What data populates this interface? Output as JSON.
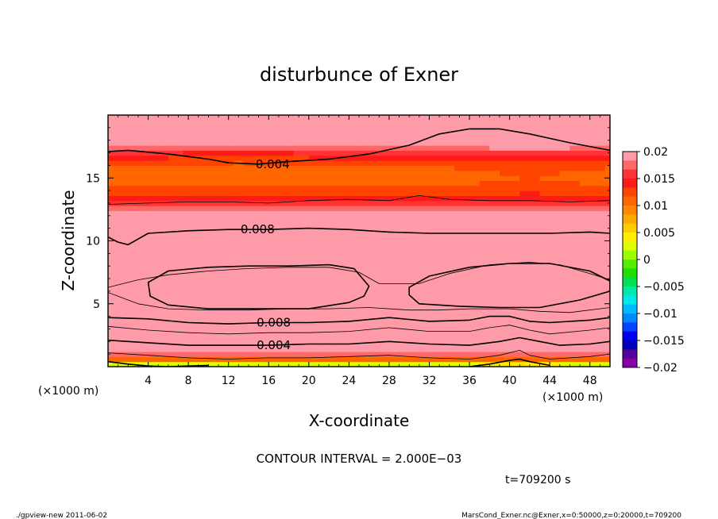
{
  "chart_data": {
    "type": "heatmap",
    "title": "disturbunce of Exner",
    "xlabel": "X-coordinate",
    "ylabel": "Z-coordinate",
    "x_unit": "(×1000 m)",
    "y_unit": "(×1000 m)",
    "xlim": [
      0,
      50
    ],
    "ylim": [
      0,
      20
    ],
    "x_ticks": [
      "4",
      "8",
      "12",
      "16",
      "20",
      "24",
      "28",
      "32",
      "36",
      "40",
      "44",
      "48"
    ],
    "x_tick_values": [
      4,
      8,
      12,
      16,
      20,
      24,
      28,
      32,
      36,
      40,
      44,
      48
    ],
    "y_ticks": [
      "5",
      "10",
      "15"
    ],
    "y_tick_values": [
      5,
      10,
      15
    ],
    "contour_interval_text": "CONTOUR INTERVAL = 2.000E−03",
    "time_text": "t=709200 s",
    "contour_labels": [
      {
        "text": "0.004",
        "x": 16.4,
        "z": 16.1
      },
      {
        "text": "0.008",
        "x": 14.9,
        "z": 10.9
      },
      {
        "text": "0.008",
        "x": 16.5,
        "z": 3.5
      },
      {
        "text": "0.004",
        "x": 16.5,
        "z": 1.7
      }
    ],
    "contours": [
      {
        "value": 0.004,
        "x": [
          0,
          2,
          6,
          10,
          12,
          15,
          18,
          22,
          26,
          30,
          33,
          36,
          39,
          42,
          46,
          50
        ],
        "z": [
          17.1,
          17.2,
          16.9,
          16.5,
          16.2,
          16.1,
          16.3,
          16.5,
          16.9,
          17.6,
          18.5,
          18.9,
          18.9,
          18.5,
          17.8,
          17.2
        ]
      },
      {
        "value": 0.006,
        "x": [
          0,
          4,
          8,
          12,
          16,
          20,
          24,
          28,
          31,
          34,
          38,
          42,
          46,
          50
        ],
        "z": [
          12.9,
          13,
          13.1,
          13.1,
          13,
          13.2,
          13.3,
          13.2,
          13.6,
          13.3,
          13.2,
          13.2,
          13.1,
          13.2
        ]
      },
      {
        "value": 0.008,
        "x": [
          0,
          1,
          2,
          4,
          8,
          12,
          16,
          20,
          24,
          28,
          32,
          36,
          40,
          44,
          48,
          50
        ],
        "z": [
          10.3,
          9.9,
          9.7,
          10.6,
          10.8,
          10.9,
          10.9,
          11,
          10.9,
          10.7,
          10.6,
          10.6,
          10.6,
          10.6,
          10.7,
          10.6
        ]
      },
      {
        "value": 0.01,
        "x": [
          0,
          3,
          6,
          10,
          14,
          18,
          22,
          25,
          27,
          29,
          31,
          34,
          38,
          42,
          45,
          48,
          50
        ],
        "z": [
          6.3,
          6.9,
          7.3,
          7.6,
          7.8,
          7.9,
          7.9,
          7.5,
          6.6,
          6.6,
          6.6,
          7.4,
          8.1,
          8.3,
          8.1,
          7.4,
          6.9
        ]
      },
      {
        "value": 0.012,
        "closed": true,
        "x": [
          4,
          6,
          10,
          14,
          18,
          22,
          24.5,
          26,
          25.5,
          24,
          20,
          15,
          10,
          6,
          4.2
        ],
        "z": [
          6.7,
          7.6,
          7.9,
          8,
          8,
          8.1,
          7.8,
          6.4,
          5.6,
          5.1,
          4.6,
          4.6,
          4.6,
          4.9,
          5.6
        ]
      },
      {
        "value": 0.012,
        "closed": true,
        "x": [
          30,
          32,
          36,
          40,
          44,
          48,
          50,
          50,
          47,
          43,
          39,
          35,
          31,
          30
        ],
        "z": [
          6.3,
          7.2,
          7.9,
          8.2,
          8.2,
          7.6,
          6.8,
          6,
          5.3,
          4.7,
          4.7,
          4.8,
          5,
          5.7
        ]
      },
      {
        "value": 0.01,
        "x": [
          0,
          3,
          6,
          10,
          14,
          18,
          22,
          26,
          30,
          33,
          36,
          40,
          43,
          46,
          50
        ],
        "z": [
          5.9,
          5,
          4.6,
          4.5,
          4.5,
          4.6,
          4.6,
          4.7,
          4.5,
          4.5,
          4.6,
          4.6,
          4.4,
          4.3,
          4.7
        ]
      },
      {
        "value": 0.008,
        "x": [
          0,
          4,
          8,
          12,
          16,
          20,
          24,
          28,
          32,
          36,
          38,
          40,
          42,
          44,
          48,
          50
        ],
        "z": [
          3.9,
          3.8,
          3.5,
          3.4,
          3.5,
          3.5,
          3.6,
          3.9,
          3.6,
          3.7,
          4,
          4,
          3.6,
          3.5,
          3.7,
          3.9
        ]
      },
      {
        "value": 0.006,
        "x": [
          0,
          4,
          8,
          12,
          16,
          20,
          24,
          28,
          32,
          36,
          38,
          40,
          42,
          44,
          48,
          50
        ],
        "z": [
          3.2,
          2.9,
          2.7,
          2.6,
          2.7,
          2.7,
          2.8,
          3.1,
          2.8,
          2.8,
          3.1,
          3.3,
          2.9,
          2.6,
          2.9,
          3.1
        ]
      },
      {
        "value": 0.004,
        "x": [
          0,
          4,
          8,
          12,
          16,
          20,
          24,
          28,
          32,
          36,
          39,
          41,
          43,
          45,
          48,
          50
        ],
        "z": [
          2.1,
          1.9,
          1.7,
          1.7,
          1.7,
          1.8,
          1.8,
          2,
          1.8,
          1.7,
          2,
          2.3,
          2,
          1.7,
          1.8,
          2
        ]
      },
      {
        "value": 0.002,
        "x": [
          0,
          4,
          8,
          12,
          16,
          20,
          24,
          28,
          32,
          36,
          39,
          41,
          42,
          44,
          48,
          50
        ],
        "z": [
          1.1,
          0.9,
          0.7,
          0.6,
          0.7,
          0.7,
          0.8,
          0.9,
          0.7,
          0.6,
          0.9,
          1.3,
          0.9,
          0.6,
          0.8,
          1
        ]
      },
      {
        "value": 0.0,
        "x": [
          0,
          2,
          4,
          6,
          8,
          10
        ],
        "z": [
          0.4,
          0.2,
          0.05,
          0,
          0.05,
          0.1
        ]
      },
      {
        "value": 0.0,
        "x": [
          36,
          38,
          40,
          41,
          42,
          44
        ],
        "z": [
          0,
          0.2,
          0.5,
          0.6,
          0.4,
          0.1
        ]
      }
    ],
    "colorbar": {
      "labels": [
        "0.02",
        "0.015",
        "0.01",
        "0.005",
        "0",
        "−0.005",
        "−0.01",
        "−0.015",
        "−0.02"
      ],
      "values": [
        0.02,
        0.015,
        0.01,
        0.005,
        0,
        -0.005,
        -0.01,
        -0.015,
        -0.02
      ],
      "colors_top_to_bottom": [
        "#ff9aa8",
        "#ff6868",
        "#ff3333",
        "#ff1a1a",
        "#ff4400",
        "#ff6600",
        "#ff8800",
        "#ffaa00",
        "#ffcc00",
        "#ffee00",
        "#ddff00",
        "#99ff00",
        "#55ee00",
        "#22dd00",
        "#00e055",
        "#00e8aa",
        "#00e8e8",
        "#00bbff",
        "#0088ff",
        "#0044ff",
        "#0000ee",
        "#0000bb",
        "#550099",
        "#8800aa"
      ]
    }
  },
  "footer": {
    "left": "./gpview-new   2011-06-02",
    "right": "MarsCond_Exner.nc@Exner,x=0:50000,z=0:20000,t=709200"
  }
}
